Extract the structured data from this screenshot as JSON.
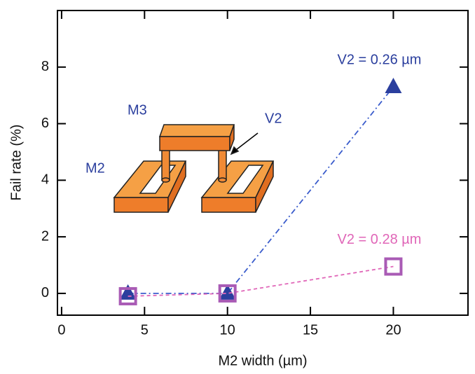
{
  "chart_data": {
    "type": "line",
    "x_label": "M2 width (µm)",
    "y_label": "Fail rate (%)",
    "x": [
      4,
      10,
      20
    ],
    "series": [
      {
        "name": "V2 = 0.26 µm",
        "color": "#2b3f9e",
        "line_color": "#3a5ccc",
        "marker": "triangle",
        "values": [
          0,
          0,
          7.3
        ]
      },
      {
        "name": "V2 = 0.28 µm",
        "color": "#a95bb5",
        "line_color": "#e066b8",
        "marker": "square",
        "values": [
          -0.1,
          0,
          0.95
        ]
      }
    ],
    "xlim": [
      -0.25,
      24.5
    ],
    "ylim": [
      -0.77,
      10
    ],
    "xticks": [
      0,
      5,
      10,
      15,
      20
    ],
    "yticks": [
      0,
      2,
      4,
      6,
      8
    ],
    "annotations": [
      "M3",
      "V2",
      "M2"
    ]
  }
}
